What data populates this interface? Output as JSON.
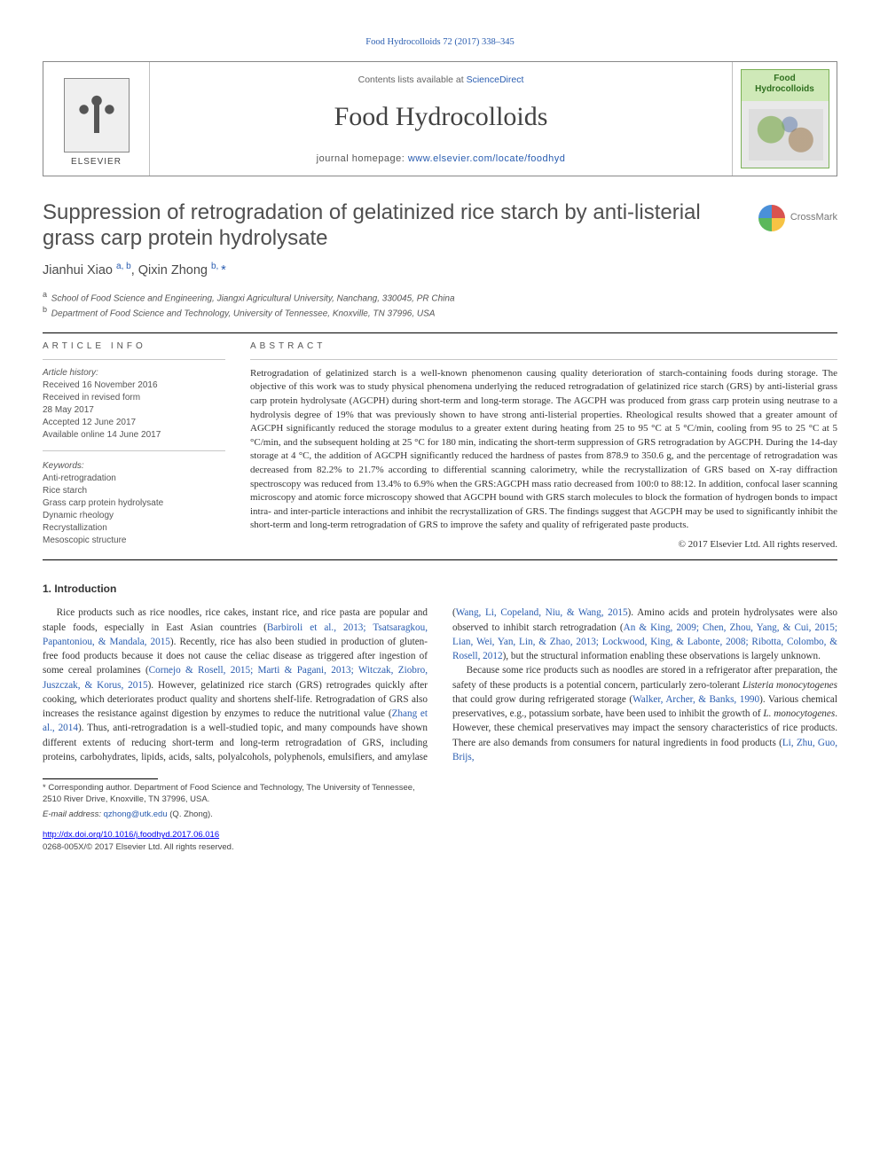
{
  "top_citation": "Food Hydrocolloids 72 (2017) 338–345",
  "header": {
    "publisher_label": "ELSEVIER",
    "contents_prefix": "Contents lists available at ",
    "contents_link": "ScienceDirect",
    "journal_title": "Food Hydrocolloids",
    "homepage_prefix": "journal homepage: ",
    "homepage_link": "www.elsevier.com/locate/foodhyd",
    "cover_title_line1": "Food",
    "cover_title_line2": "Hydrocolloids",
    "crossmark": "CrossMark"
  },
  "article": {
    "title": "Suppression of retrogradation of gelatinized rice starch by anti-listerial grass carp protein hydrolysate",
    "authors_html": "Jianhui Xiao <sup>a, b</sup>, Qixin Zhong <sup>b, </sup><span class='star'>*</span>",
    "affiliations": [
      {
        "mark": "a",
        "text": "School of Food Science and Engineering, Jiangxi Agricultural University, Nanchang, 330045, PR China"
      },
      {
        "mark": "b",
        "text": "Department of Food Science and Technology, University of Tennessee, Knoxville, TN 37996, USA"
      }
    ]
  },
  "info": {
    "head": "ARTICLE INFO",
    "history_label": "Article history:",
    "history_lines": [
      "Received 16 November 2016",
      "Received in revised form",
      "28 May 2017",
      "Accepted 12 June 2017",
      "Available online 14 June 2017"
    ],
    "keywords_label": "Keywords:",
    "keywords": [
      "Anti-retrogradation",
      "Rice starch",
      "Grass carp protein hydrolysate",
      "Dynamic rheology",
      "Recrystallization",
      "Mesoscopic structure"
    ]
  },
  "abstract": {
    "head": "ABSTRACT",
    "text": "Retrogradation of gelatinized starch is a well-known phenomenon causing quality deterioration of starch-containing foods during storage. The objective of this work was to study physical phenomena underlying the reduced retrogradation of gelatinized rice starch (GRS) by anti-listerial grass carp protein hydrolysate (AGCPH) during short-term and long-term storage. The AGCPH was produced from grass carp protein using neutrase to a hydrolysis degree of 19% that was previously shown to have strong anti-listerial properties. Rheological results showed that a greater amount of AGCPH significantly reduced the storage modulus to a greater extent during heating from 25 to 95 °C at 5 °C/min, cooling from 95 to 25 °C at 5 °C/min, and the subsequent holding at 25 °C for 180 min, indicating the short-term suppression of GRS retrogradation by AGCPH. During the 14-day storage at 4 °C, the addition of AGCPH significantly reduced the hardness of pastes from 878.9 to 350.6 g, and the percentage of retrogradation was decreased from 82.2% to 21.7% according to differential scanning calorimetry, while the recrystallization of GRS based on X-ray diffraction spectroscopy was reduced from 13.4% to 6.9% when the GRS:AGCPH mass ratio decreased from 100:0 to 88:12. In addition, confocal laser scanning microscopy and atomic force microscopy showed that AGCPH bound with GRS starch molecules to block the formation of hydrogen bonds to impact intra- and inter-particle interactions and inhibit the recrystallization of GRS. The findings suggest that AGCPH may be used to significantly inhibit the short-term and long-term retrogradation of GRS to improve the safety and quality of refrigerated paste products.",
    "copyright": "© 2017 Elsevier Ltd. All rights reserved."
  },
  "intro": {
    "head": "1. Introduction",
    "p1_pre": "Rice products such as rice noodles, rice cakes, instant rice, and rice pasta are popular and staple foods, especially in East Asian countries (",
    "p1_ref1": "Barbiroli et al., 2013; Tsatsaragkou, Papantoniou, & Mandala, 2015",
    "p1_mid1": "). Recently, rice has also been studied in production of gluten-free food products because it does not cause the celiac disease as triggered after ingestion of some cereal prolamines (",
    "p1_ref2": "Cornejo & Rosell, 2015; Marti & Pagani, 2013; Witczak, Ziobro, Juszczak, & Korus, 2015",
    "p1_mid2": "). However, gelatinized rice starch (GRS) retrogrades quickly after cooking, which deteriorates product quality and shortens shelf-life. Retrogradation of GRS also increases the resistance against digestion by enzymes to reduce the nutritional value (",
    "p1_ref3": "Zhang et al., 2014",
    "p1_mid3": "). Thus, anti-retrogradation is a well-",
    "p2_pre": "studied topic, and many compounds have shown different extents of reducing short-term and long-term retrogradation of GRS, including proteins, carbohydrates, lipids, acids, salts, polyalcohols, polyphenols, emulsifiers, and amylase (",
    "p2_ref1": "Wang, Li, Copeland, Niu, & Wang, 2015",
    "p2_mid1": "). Amino acids and protein hydrolysates were also observed to inhibit starch retrogradation (",
    "p2_ref2": "An & King, 2009; Chen, Zhou, Yang, & Cui, 2015; Lian, Wei, Yan, Lin, & Zhao, 2013; Lockwood, King, & Labonte, 2008; Ribotta, Colombo, & Rosell, 2012",
    "p2_mid2": "), but the structural information enabling these observations is largely unknown.",
    "p3_pre": "Because some rice products such as noodles are stored in a refrigerator after preparation, the safety of these products is a potential concern, particularly zero-tolerant ",
    "p3_ital": "Listeria monocytogenes",
    "p3_mid1": " that could grow during refrigerated storage (",
    "p3_ref1": "Walker, Archer, & Banks, 1990",
    "p3_mid2": "). Various chemical preservatives, e.g., potassium sorbate, have been used to inhibit the growth of ",
    "p3_ital2": "L. monocytogenes",
    "p3_mid3": ". However, these chemical preservatives may impact the sensory characteristics of rice products. There are also demands from consumers for natural ingredients in food products (",
    "p3_ref2": "Li, Zhu, Guo, Brijs,"
  },
  "footnote": {
    "corr": "* Corresponding author. Department of Food Science and Technology, The University of Tennessee, 2510 River Drive, Knoxville, TN 37996, USA.",
    "email_label": "E-mail address: ",
    "email": "qzhong@utk.edu",
    "email_suffix": " (Q. Zhong)."
  },
  "doi": {
    "link": "http://dx.doi.org/10.1016/j.foodhyd.2017.06.016",
    "issn": "0268-005X/© 2017 Elsevier Ltd. All rights reserved."
  },
  "colors": {
    "link": "#2a5db0",
    "text": "#333333",
    "muted": "#666666",
    "rule": "#000000"
  }
}
